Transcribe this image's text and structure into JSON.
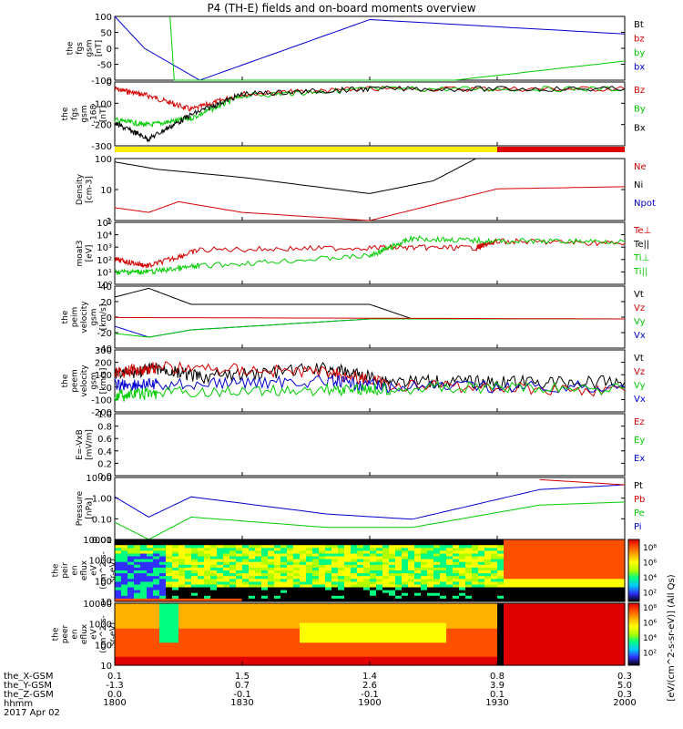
{
  "title": "P4 (TH-E) fields and on-board moments overview",
  "colors": {
    "black": "#000000",
    "red": "#d40000",
    "green": "#00cc00",
    "blue": "#0000d0",
    "yellow": "#ffee00",
    "barred": "#e00000"
  },
  "x_ticks": [
    "1800",
    "1830",
    "1900",
    "1930",
    "2000"
  ],
  "ephem": {
    "labels": [
      "the_X-GSM",
      "the_Y-GSM",
      "the_Z-GSM",
      "hhmm",
      "2017 Apr 02"
    ],
    "x": [
      "0.1",
      "1.5",
      "1.4",
      "0.8",
      "0.3"
    ],
    "y": [
      "-1.3",
      "0.7",
      "2.6",
      "3.9",
      "5.0"
    ],
    "z": [
      "0.0",
      "-0.1",
      "-0.1",
      "0.1",
      "0.3"
    ]
  },
  "panels": [
    {
      "ylabel": [
        "the",
        "fgs",
        "gsm",
        "[nT]"
      ],
      "ticks": [
        "100",
        "50",
        "0",
        "-50",
        "-100"
      ],
      "legend": [
        {
          "t": "Bt",
          "c": "black"
        },
        {
          "t": "bz",
          "c": "red"
        },
        {
          "t": "by",
          "c": "green"
        },
        {
          "t": "bx",
          "c": "blue"
        }
      ]
    },
    {
      "ylabel": [
        "the",
        "fgs",
        "gsm",
        "-168",
        "[nT]"
      ],
      "ticks": [
        "0",
        "-100",
        "-200",
        "-300"
      ],
      "legend": [
        {
          "t": "Bz",
          "c": "red"
        },
        {
          "t": "By",
          "c": "green"
        },
        {
          "t": "Bx",
          "c": "black"
        }
      ]
    },
    {
      "ylabel": [
        "Density",
        "[cm-3]"
      ],
      "ticks": [
        "100",
        "10",
        "1"
      ],
      "legend": [
        {
          "t": "Ne",
          "c": "red"
        },
        {
          "t": "Ni",
          "c": "black"
        },
        {
          "t": "Npot",
          "c": "blue"
        }
      ]
    },
    {
      "ylabel": [
        "moat3",
        "[eV]"
      ],
      "ticks": [
        "10⁵",
        "10⁴",
        "10³",
        "10²",
        "10¹",
        "10⁰"
      ],
      "legend": [
        {
          "t": "Te⊥",
          "c": "red"
        },
        {
          "t": "Te||",
          "c": "black"
        },
        {
          "t": "Ti⊥",
          "c": "green"
        },
        {
          "t": "Ti||",
          "c": "green"
        }
      ]
    },
    {
      "ylabel": [
        "the",
        "peim",
        "velocity",
        "gsm",
        "[km/s]"
      ],
      "ticks": [
        "40",
        "20",
        "0",
        "-20",
        "-40"
      ],
      "legend": [
        {
          "t": "Vt",
          "c": "black"
        },
        {
          "t": "Vz",
          "c": "red"
        },
        {
          "t": "Vy",
          "c": "green"
        },
        {
          "t": "Vx",
          "c": "blue"
        }
      ]
    },
    {
      "ylabel": [
        "the",
        "peem",
        "velocity",
        "gsm",
        "[km/s]"
      ],
      "ticks": [
        "300",
        "200",
        "100",
        "0",
        "-100",
        "-200"
      ],
      "legend": [
        {
          "t": "Vt",
          "c": "black"
        },
        {
          "t": "Vz",
          "c": "red"
        },
        {
          "t": "Vy",
          "c": "green"
        },
        {
          "t": "Vx",
          "c": "blue"
        }
      ]
    },
    {
      "ylabel": [
        "E=-VxB",
        "[mV/m]"
      ],
      "ticks": [
        "1.0",
        "0.8",
        "0.6",
        "0.4",
        "0.2",
        "0.0"
      ],
      "legend": [
        {
          "t": "Ez",
          "c": "red"
        },
        {
          "t": "Ey",
          "c": "green"
        },
        {
          "t": "Ex",
          "c": "blue"
        }
      ]
    },
    {
      "ylabel": [
        "Pressure",
        "[nPa]"
      ],
      "ticks": [
        "10.00",
        "1.00",
        "0.10",
        "0.01"
      ],
      "legend": [
        {
          "t": "Pt",
          "c": "black"
        },
        {
          "t": "Pb",
          "c": "red"
        },
        {
          "t": "Pe",
          "c": "green"
        },
        {
          "t": "Pi",
          "c": "blue"
        }
      ]
    },
    {
      "ylabel": [
        "the",
        "peir",
        "en",
        "eflux",
        "eV",
        "(cm^2-s-",
        "sr-eV)"
      ],
      "ticks": [
        "10000",
        "1000",
        "100",
        "10"
      ],
      "legend": []
    },
    {
      "ylabel": [
        "the",
        "peer",
        "en",
        "eflux",
        "eV",
        "(cm^2-s-",
        "sr-eV)"
      ],
      "ticks": [
        "10000",
        "1000",
        "100",
        "10"
      ],
      "legend": []
    }
  ],
  "colorbar": {
    "ticks": [
      "10⁸",
      "10⁶",
      "10⁴",
      "10²",
      "10⁸",
      "10⁶",
      "10⁴",
      "10²"
    ],
    "label": "[eV/(cm^2-s-sr-eV)] (All Qs)"
  },
  "chart_data": {
    "type": "line",
    "x_time_labels": [
      "1800",
      "1830",
      "1900",
      "1930",
      "2000"
    ],
    "panels": [
      {
        "name": "the fgs gsm [nT]",
        "ylim": [
          -100,
          100
        ],
        "series": [
          {
            "name": "bx",
            "x": [
              "1800",
              "1807",
              "1820",
              "1900",
              "2000"
            ],
            "values": [
              100,
              0,
              -100,
              90,
              45
            ]
          },
          {
            "name": "by",
            "x": [
              "1813",
              "1814",
              "1920",
              "2000"
            ],
            "values": [
              100,
              -100,
              -100,
              -40
            ]
          }
        ]
      },
      {
        "name": "the fgs gsm -168 [nT]",
        "ylim": [
          -330,
          40
        ],
        "series": [
          {
            "name": "Bz",
            "x": [
              "1800",
              "1808",
              "1818",
              "1830",
              "1900",
              "2000"
            ],
            "values": [
              0,
              -40,
              -120,
              -30,
              0,
              0
            ]
          },
          {
            "name": "By",
            "x": [
              "1800",
              "1808",
              "1818",
              "1830",
              "1900",
              "2000"
            ],
            "values": [
              -180,
              -210,
              -170,
              -40,
              0,
              0
            ]
          },
          {
            "name": "Bx",
            "x": [
              "1800",
              "1808",
              "1818",
              "1830",
              "1900",
              "2000"
            ],
            "values": [
              -200,
              -290,
              -150,
              -30,
              0,
              0
            ]
          }
        ]
      },
      {
        "name": "Density [cm-3]",
        "scale": "log",
        "ylim": [
          1,
          200
        ],
        "series": [
          {
            "name": "Ni",
            "x": [
              "1800",
              "1810",
              "1830",
              "1900",
              "1915",
              "1925"
            ],
            "values": [
              150,
              80,
              40,
              10,
              30,
              200
            ]
          },
          {
            "name": "Ne",
            "x": [
              "1800",
              "1808",
              "1815",
              "1830",
              "1900",
              "1930",
              "2000"
            ],
            "values": [
              3,
              2,
              5,
              2,
              1,
              15,
              18
            ]
          }
        ]
      },
      {
        "name": "moat3 [eV]",
        "scale": "log",
        "ylim": [
          1,
          100000
        ],
        "series": [
          {
            "name": "Te⊥",
            "x": [
              "1800",
              "1808",
              "1820",
              "1900",
              "1925",
              "1930",
              "2000"
            ],
            "values": [
              100,
              30,
              600,
              900,
              900,
              3000,
              2000
            ]
          },
          {
            "name": "Ti⊥",
            "x": [
              "1800",
              "1808",
              "1820",
              "1900",
              "1910",
              "1930",
              "2000"
            ],
            "values": [
              10,
              10,
              30,
              200,
              5000,
              3000,
              3000
            ]
          }
        ]
      },
      {
        "name": "the peim velocity gsm [km/s]",
        "ylim": [
          -40,
          45
        ],
        "series": [
          {
            "name": "Vt",
            "x": [
              "1800",
              "1808",
              "1818",
              "1900",
              "1910",
              "2000"
            ],
            "values": [
              30,
              42,
              20,
              20,
              0,
              0
            ]
          },
          {
            "name": "Vx",
            "x": [
              "1800",
              "1808",
              "1818",
              "1900",
              "2000"
            ],
            "values": [
              -10,
              -25,
              -15,
              0,
              0
            ]
          },
          {
            "name": "Vy",
            "x": [
              "1800",
              "1808",
              "1818",
              "1900",
              "2000"
            ],
            "values": [
              -20,
              -25,
              -15,
              0,
              0
            ]
          },
          {
            "name": "Vz",
            "x": [
              "1800",
              "2000"
            ],
            "values": [
              2,
              0
            ]
          }
        ]
      },
      {
        "name": "the peem velocity gsm [km/s]",
        "ylim": [
          -200,
          300
        ],
        "series": [
          {
            "name": "Vt",
            "x": [
              "1800",
              "1810",
              "1820",
              "1850",
              "1905",
              "1930",
              "2000"
            ],
            "values": [
              100,
              150,
              80,
              150,
              50,
              40,
              40
            ]
          },
          {
            "name": "Vz",
            "x": [
              "1800",
              "1810",
              "1850",
              "1905",
              "2000"
            ],
            "values": [
              120,
              160,
              120,
              20,
              -30
            ]
          },
          {
            "name": "Vx",
            "x": [
              "1800",
              "1810",
              "1850",
              "1905",
              "2000"
            ],
            "values": [
              20,
              20,
              50,
              0,
              0
            ]
          },
          {
            "name": "Vy",
            "x": [
              "1800",
              "1810",
              "1850",
              "1905",
              "2000"
            ],
            "values": [
              -70,
              -50,
              -20,
              -10,
              -10
            ]
          }
        ]
      },
      {
        "name": "E=-VxB [mV/m]",
        "ylim": [
          0,
          1
        ],
        "series": []
      },
      {
        "name": "Pressure [nPa]",
        "scale": "log",
        "ylim": [
          0.01,
          40
        ],
        "series": [
          {
            "name": "Pi",
            "x": [
              "1800",
              "1808",
              "1818",
              "1850",
              "1910",
              "1940",
              "2000"
            ],
            "values": [
              3,
              0.2,
              3,
              0.3,
              0.15,
              8,
              15
            ]
          },
          {
            "name": "Pe",
            "x": [
              "1800",
              "1808",
              "1818",
              "1850",
              "1910",
              "1940",
              "2000"
            ],
            "values": [
              0.1,
              0.01,
              0.2,
              0.05,
              0.05,
              1,
              1.5
            ]
          },
          {
            "name": "Pb",
            "x": [
              "1940",
              "2000"
            ],
            "values": [
              30,
              15
            ]
          }
        ]
      }
    ],
    "spectrograms": [
      "peir en eflux",
      "peer en eflux"
    ]
  }
}
